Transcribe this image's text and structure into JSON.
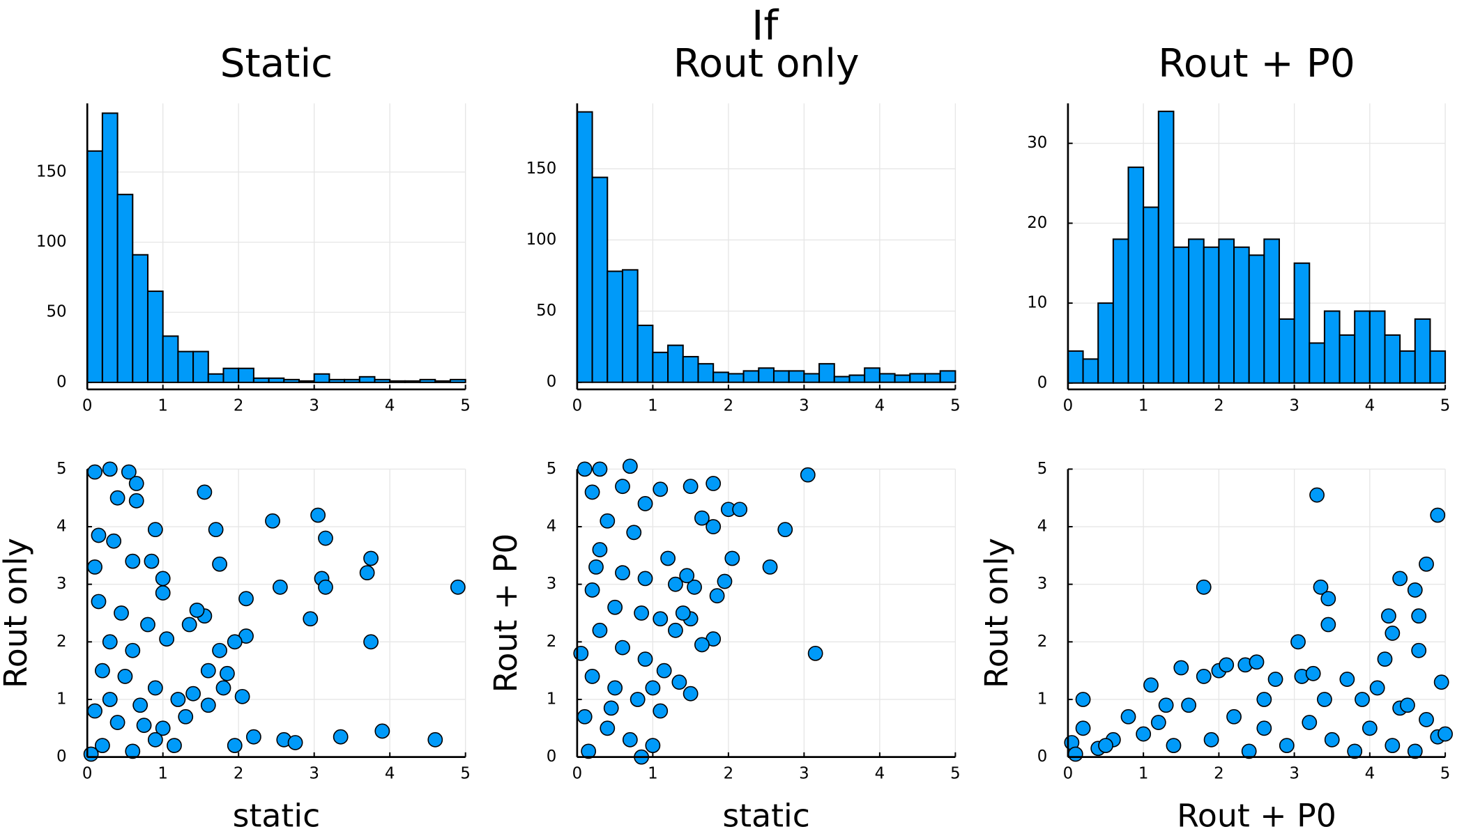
{
  "figure_title": "If",
  "chart_data": [
    {
      "type": "histogram",
      "title": "Static",
      "color": "#009af9",
      "grid": true,
      "bins": [
        0,
        0.2,
        0.4,
        0.6,
        0.8,
        1,
        1.2,
        1.4,
        1.6,
        1.8,
        2,
        2.2,
        2.4,
        2.6,
        2.8,
        3,
        3.2,
        3.4,
        3.6,
        3.8,
        4,
        4.2,
        4.4,
        4.6,
        4.8,
        5
      ],
      "values": [
        165,
        192,
        134,
        91,
        65,
        33,
        22,
        22,
        6,
        10,
        10,
        3,
        3,
        2,
        1,
        6,
        2,
        2,
        4,
        2,
        1,
        1,
        2,
        1,
        2
      ],
      "xlim": [
        0,
        5
      ],
      "xticks": [
        0,
        1,
        2,
        3,
        4,
        5
      ],
      "ylim": [
        -5,
        199
      ],
      "yticks": [
        0,
        50,
        100,
        150
      ]
    },
    {
      "type": "histogram",
      "title": "Rout only",
      "color": "#009af9",
      "grid": true,
      "bins": [
        0,
        0.2,
        0.4,
        0.6,
        0.8,
        1,
        1.2,
        1.4,
        1.6,
        1.8,
        2,
        2.2,
        2.4,
        2.6,
        2.8,
        3,
        3.2,
        3.4,
        3.6,
        3.8,
        4,
        4.2,
        4.4,
        4.6,
        4.8,
        5
      ],
      "values": [
        190,
        144,
        78,
        79,
        40,
        21,
        26,
        18,
        13,
        7,
        6,
        8,
        10,
        8,
        8,
        6,
        13,
        4,
        5,
        10,
        6,
        5,
        6,
        6,
        8
      ],
      "xlim": [
        0,
        5
      ],
      "xticks": [
        0,
        1,
        2,
        3,
        4,
        5
      ],
      "ylim": [
        -5,
        196
      ],
      "yticks": [
        0,
        50,
        100,
        150
      ]
    },
    {
      "type": "histogram",
      "title": "Rout + P0",
      "color": "#009af9",
      "grid": true,
      "bins": [
        0,
        0.2,
        0.4,
        0.6,
        0.8,
        1,
        1.2,
        1.4,
        1.6,
        1.8,
        2,
        2.2,
        2.4,
        2.6,
        2.8,
        3,
        3.2,
        3.4,
        3.6,
        3.8,
        4,
        4.2,
        4.4,
        4.6,
        4.8,
        5
      ],
      "values": [
        4,
        3,
        10,
        18,
        27,
        22,
        34,
        17,
        18,
        17,
        18,
        17,
        16,
        18,
        8,
        15,
        5,
        9,
        6,
        9,
        9,
        6,
        4,
        8,
        4
      ],
      "xlim": [
        0,
        5
      ],
      "xticks": [
        0,
        1,
        2,
        3,
        4,
        5
      ],
      "ylim": [
        -0.8,
        35
      ],
      "yticks": [
        0,
        10,
        20,
        30
      ]
    },
    {
      "type": "scatter",
      "xlabel": "static",
      "ylabel": "Rout only",
      "color": "#009af9",
      "grid": true,
      "x": [
        1.55,
        2.45,
        3.05,
        3.15,
        1.7,
        1.75,
        2.1,
        2.55,
        3.1,
        3.15,
        3.75,
        3.7,
        4.9,
        2.95,
        3.75,
        2.1,
        1.95,
        2.05,
        2.2,
        1.95,
        2.6,
        2.75,
        3.35,
        3.9,
        4.6,
        0.1,
        0.3,
        0.55,
        0.65,
        0.4,
        0.65,
        0.15,
        0.35,
        0.9,
        0.1,
        0.6,
        0.85,
        1.0,
        1.0,
        0.15,
        0.45,
        0.8,
        1.05,
        0.3,
        0.6,
        1.35,
        1.55,
        1.45,
        1.75,
        1.6,
        1.85,
        1.8,
        0.2,
        0.5,
        0.9,
        1.2,
        0.1,
        0.4,
        0.7,
        1.0,
        1.3,
        0.2,
        0.6,
        0.9,
        1.15,
        1.4,
        0.3,
        0.05,
        0.75,
        1.6
      ],
      "values": [
        4.6,
        4.1,
        4.2,
        3.8,
        3.95,
        3.35,
        2.75,
        2.95,
        3.1,
        2.95,
        3.45,
        3.2,
        2.95,
        2.4,
        2.0,
        2.1,
        2.0,
        1.05,
        0.35,
        0.2,
        0.3,
        0.25,
        0.35,
        0.45,
        0.3,
        4.95,
        5.0,
        4.95,
        4.75,
        4.5,
        4.45,
        3.85,
        3.75,
        3.95,
        3.3,
        3.4,
        3.4,
        3.1,
        2.85,
        2.7,
        2.5,
        2.3,
        2.05,
        2.0,
        1.85,
        2.3,
        2.45,
        2.55,
        1.85,
        1.5,
        1.45,
        1.2,
        1.5,
        1.4,
        1.2,
        1.0,
        0.8,
        0.6,
        0.9,
        0.5,
        0.7,
        0.2,
        0.1,
        0.3,
        0.2,
        1.1,
        1.0,
        0.05,
        0.55,
        0.9
      ],
      "xlim": [
        0,
        5
      ],
      "xticks": [
        0,
        1,
        2,
        3,
        4,
        5
      ],
      "ylim": [
        0,
        5
      ],
      "yticks": [
        0,
        1,
        2,
        3,
        4,
        5
      ]
    },
    {
      "type": "scatter",
      "xlabel": "static",
      "ylabel": "Rout + P0",
      "color": "#009af9",
      "grid": true,
      "x": [
        3.05,
        1.8,
        1.5,
        1.1,
        1.65,
        2.0,
        2.15,
        2.75,
        1.8,
        2.05,
        2.55,
        1.95,
        1.85,
        1.8,
        3.15,
        1.65,
        1.5,
        1.4,
        1.55,
        1.45,
        1.0,
        0.85,
        0.15,
        0.1,
        0.3,
        0.7,
        0.2,
        0.6,
        0.4,
        0.9,
        1.2,
        0.75,
        0.3,
        0.6,
        0.9,
        1.3,
        0.2,
        0.5,
        0.85,
        1.1,
        1.3,
        0.3,
        0.6,
        0.9,
        1.15,
        1.35,
        1.5,
        0.2,
        0.5,
        0.8,
        1.1,
        0.1,
        0.4,
        0.7,
        0.45,
        1.0,
        0.05,
        0.25
      ],
      "values": [
        4.9,
        4.75,
        4.7,
        4.65,
        4.15,
        4.3,
        4.3,
        3.95,
        4.0,
        3.45,
        3.3,
        3.05,
        2.8,
        2.05,
        1.8,
        1.95,
        2.4,
        2.5,
        2.95,
        3.15,
        0.2,
        0.0,
        0.1,
        5.0,
        5.0,
        5.05,
        4.6,
        4.7,
        4.1,
        4.4,
        3.45,
        3.9,
        3.6,
        3.2,
        3.1,
        3.0,
        2.9,
        2.6,
        2.5,
        2.4,
        2.2,
        2.2,
        1.9,
        1.7,
        1.5,
        1.3,
        1.1,
        1.4,
        1.2,
        1.0,
        0.8,
        0.7,
        0.5,
        0.3,
        0.85,
        1.2,
        1.8,
        3.3
      ],
      "xlim": [
        0,
        5
      ],
      "xticks": [
        0,
        1,
        2,
        3,
        4,
        5
      ],
      "ylim": [
        0,
        5
      ],
      "yticks": [
        0,
        1,
        2,
        3,
        4,
        5
      ]
    },
    {
      "type": "scatter",
      "xlabel": "Rout + P0",
      "ylabel": "Rout only",
      "color": "#009af9",
      "grid": true,
      "x": [
        3.3,
        4.9,
        4.75,
        4.4,
        4.6,
        3.35,
        3.45,
        1.8,
        4.65,
        4.25,
        3.45,
        4.3,
        3.05,
        4.65,
        4.2,
        4.95,
        3.7,
        0.2,
        1.1,
        1.5,
        1.8,
        2.0,
        2.1,
        2.35,
        2.5,
        2.75,
        3.1,
        3.25,
        3.9,
        4.1,
        4.4,
        4.5,
        4.75,
        0.05,
        0.1,
        0.2,
        0.4,
        0.6,
        0.8,
        1.0,
        1.2,
        1.4,
        1.6,
        1.9,
        2.2,
        2.4,
        2.6,
        2.9,
        3.2,
        3.5,
        3.8,
        4.0,
        4.3,
        4.6,
        4.9,
        5.0,
        1.3,
        2.6,
        3.4,
        0.5
      ],
      "values": [
        4.55,
        4.2,
        3.35,
        3.1,
        2.9,
        2.95,
        2.75,
        2.95,
        2.45,
        2.45,
        2.3,
        2.15,
        2.0,
        1.85,
        1.7,
        1.3,
        1.35,
        1.0,
        1.25,
        1.55,
        1.4,
        1.5,
        1.6,
        1.6,
        1.65,
        1.35,
        1.4,
        1.45,
        1.0,
        1.2,
        0.85,
        0.9,
        0.65,
        0.25,
        0.05,
        0.5,
        0.15,
        0.3,
        0.7,
        0.4,
        0.6,
        0.2,
        0.9,
        0.3,
        0.7,
        0.1,
        0.5,
        0.2,
        0.6,
        0.3,
        0.1,
        0.5,
        0.2,
        0.1,
        0.35,
        0.4,
        0.9,
        1.0,
        1.0,
        0.2
      ],
      "xlim": [
        0,
        5
      ],
      "xticks": [
        0,
        1,
        2,
        3,
        4,
        5
      ],
      "ylim": [
        0,
        5
      ],
      "yticks": [
        0,
        1,
        2,
        3,
        4,
        5
      ]
    }
  ]
}
